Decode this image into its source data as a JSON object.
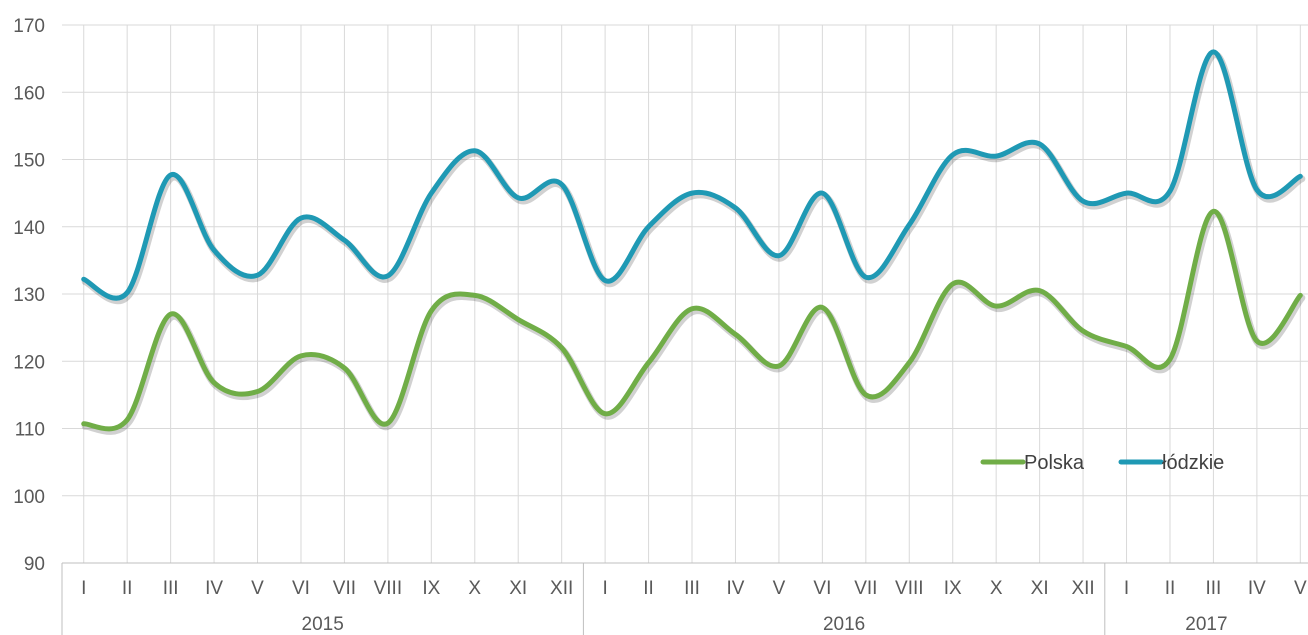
{
  "chart_data": {
    "type": "line",
    "title": "",
    "xlabel": "",
    "ylabel": "",
    "ylim": [
      90,
      170
    ],
    "yticks": [
      90,
      100,
      110,
      120,
      130,
      140,
      150,
      160,
      170
    ],
    "grid": true,
    "smooth": true,
    "legend_position": "bottom-right",
    "years": [
      {
        "label": "2015",
        "months": [
          "I",
          "II",
          "III",
          "IV",
          "V",
          "VI",
          "VII",
          "VIII",
          "IX",
          "X",
          "XI",
          "XII"
        ]
      },
      {
        "label": "2016",
        "months": [
          "I",
          "II",
          "III",
          "IV",
          "V",
          "VI",
          "VII",
          "VIII",
          "IX",
          "X",
          "XI",
          "XII"
        ]
      },
      {
        "label": "2017",
        "months": [
          "I",
          "II",
          "III",
          "IV",
          "V"
        ]
      }
    ],
    "series": [
      {
        "name": "Polska",
        "color": "#70ad47",
        "values": [
          110.7,
          111.3,
          127.0,
          116.8,
          115.5,
          120.8,
          119.0,
          110.8,
          127.5,
          129.8,
          126.2,
          122.0,
          112.2,
          119.8,
          127.8,
          124.0,
          119.3,
          128.0,
          115.0,
          119.8,
          131.5,
          128.2,
          130.5,
          124.5,
          122.2,
          120.3,
          142.3,
          123.0,
          129.8
        ]
      },
      {
        "name": "łódzkie",
        "color": "#1f99b4",
        "values": [
          132.2,
          130.2,
          147.7,
          136.5,
          132.8,
          141.3,
          138.0,
          132.7,
          145.0,
          151.3,
          144.3,
          146.3,
          132.0,
          140.0,
          145.0,
          142.8,
          135.7,
          145.0,
          132.5,
          140.3,
          150.7,
          150.5,
          152.3,
          143.8,
          145.0,
          145.3,
          166.0,
          145.5,
          147.5
        ]
      }
    ]
  }
}
